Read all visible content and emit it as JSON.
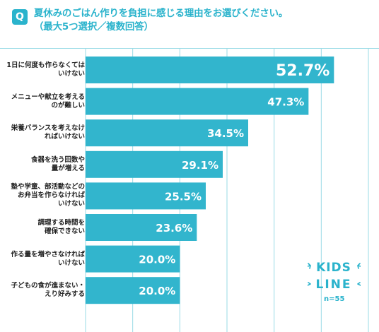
{
  "badge": "Q",
  "title_line1": "夏休みのごはん作りを負担に感じる理由をお選びください。",
  "title_line2": "（最大5つ選択／複数回答）",
  "sample_label": "n=55",
  "logo": {
    "line1": "KIDS",
    "line2": "LINE"
  },
  "colors": {
    "bar": "#32b5cd",
    "accent": "#2ab3cc",
    "grid": "#9adbe6"
  },
  "chart_data": {
    "type": "bar",
    "orientation": "horizontal",
    "title": "夏休みのごはん作りを負担に感じる理由をお選びください。（最大5つ選択／複数回答）",
    "categories": [
      [
        "1日に何度も作らなくては",
        "いけない"
      ],
      [
        "メニューや献立を考える",
        "のが難しい"
      ],
      [
        "栄養バランスを考えなけ",
        "ればいけない"
      ],
      [
        "食器を洗う回数や",
        "量が増える"
      ],
      [
        "塾や学童、部活動などの",
        "お弁当を作らなければ",
        "いけない"
      ],
      [
        "調理する時間を",
        "確保できない"
      ],
      [
        "作る量を増やさなければ",
        "いけない"
      ],
      [
        "子どもの食が進まない・",
        "えり好みする"
      ]
    ],
    "values": [
      52.7,
      47.3,
      34.5,
      29.1,
      25.5,
      23.6,
      20.0,
      20.0
    ],
    "value_labels": [
      "52.7%",
      "47.3%",
      "34.5%",
      "29.1%",
      "25.5%",
      "23.6%",
      "20.0%",
      "20.0%"
    ],
    "xlim": [
      0,
      60
    ],
    "unit": "%",
    "n": 55
  }
}
